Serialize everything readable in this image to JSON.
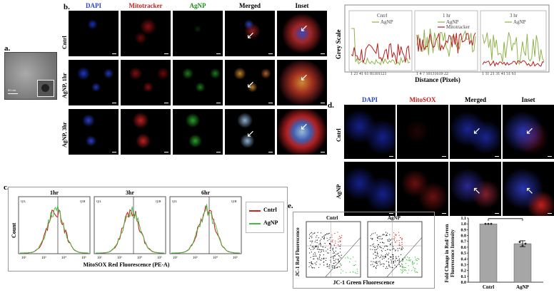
{
  "panel_a": {
    "label": "a.",
    "scale_text": "50 nm"
  },
  "panel_b": {
    "label": "b.",
    "headers": [
      "DAPI",
      "Mitotracker",
      "AgNP",
      "Merged",
      "Inset"
    ],
    "header_colors": [
      "#2a45c8",
      "#c42020",
      "#1a8f1a",
      "#000000",
      "#000000"
    ],
    "rows": [
      "Cntrl",
      "AgNP, 1hr",
      "AgNP, 3hr"
    ]
  },
  "grey_plot": {
    "ylabel": "Grey Scale",
    "xlabel": "Distance (Pixels)",
    "colors": {
      "agnp": "#8fb34a",
      "mito": "#b81c1c"
    },
    "subplots": [
      {
        "title": "Cntrl",
        "legend": [
          "AgNP"
        ],
        "ticks": "1 21 41 61 81101121"
      },
      {
        "title": "1 hr",
        "legend": [
          "AgNP",
          "Mitotracker"
        ],
        "ticks": "1 4 7 10131619 22"
      },
      {
        "title": "3 hr",
        "legend": [
          "AgNP"
        ],
        "ticks": "1 11 21 31 41 51 61"
      }
    ]
  },
  "panel_c": {
    "label": "c.",
    "titles": [
      "1hr",
      "3hr",
      "6hr"
    ],
    "ylabel": "Count",
    "xlabel": "MitoSOX Red Fluorescence (PE-A)",
    "legend": [
      {
        "name": "Cntrl",
        "color": "#cc2222"
      },
      {
        "name": "AgNP",
        "color": "#3fbf3f"
      }
    ],
    "ticks": [
      "10²",
      "10³",
      "10⁴",
      "10⁵"
    ],
    "quad": [
      "Q1L",
      "Q1R"
    ]
  },
  "panel_d": {
    "label": "d.",
    "headers": [
      "DAPI",
      "MitoSOX",
      "Merged",
      "Inset"
    ],
    "header_colors": [
      "#2a45c8",
      "#c42020",
      "#000000",
      "#000000"
    ],
    "rows": [
      "Cntrl",
      "AgNP"
    ]
  },
  "panel_e": {
    "label": "e.",
    "titles": [
      "Cntrl",
      "AgNP"
    ],
    "ylabel": "JC-1 Red Fluorescence",
    "xlabel": "JC-1 Green Fluorescence",
    "bar": {
      "ylabel": "Fold Change in Red/ Green Fluorescence Intensity",
      "categories": [
        "Cntrl",
        "AgNP"
      ],
      "values": [
        1.0,
        0.66
      ],
      "errors": [
        0.0,
        0.05
      ],
      "ylim": [
        0.0,
        1.1
      ],
      "yticks": [
        "0.0",
        "0.1",
        "0.2",
        "0.3",
        "0.4",
        "0.5",
        "0.6",
        "0.7",
        "0.8",
        "0.9",
        "1.0",
        "1.1"
      ],
      "sig": "*",
      "color": "#a6a6a6"
    }
  }
}
